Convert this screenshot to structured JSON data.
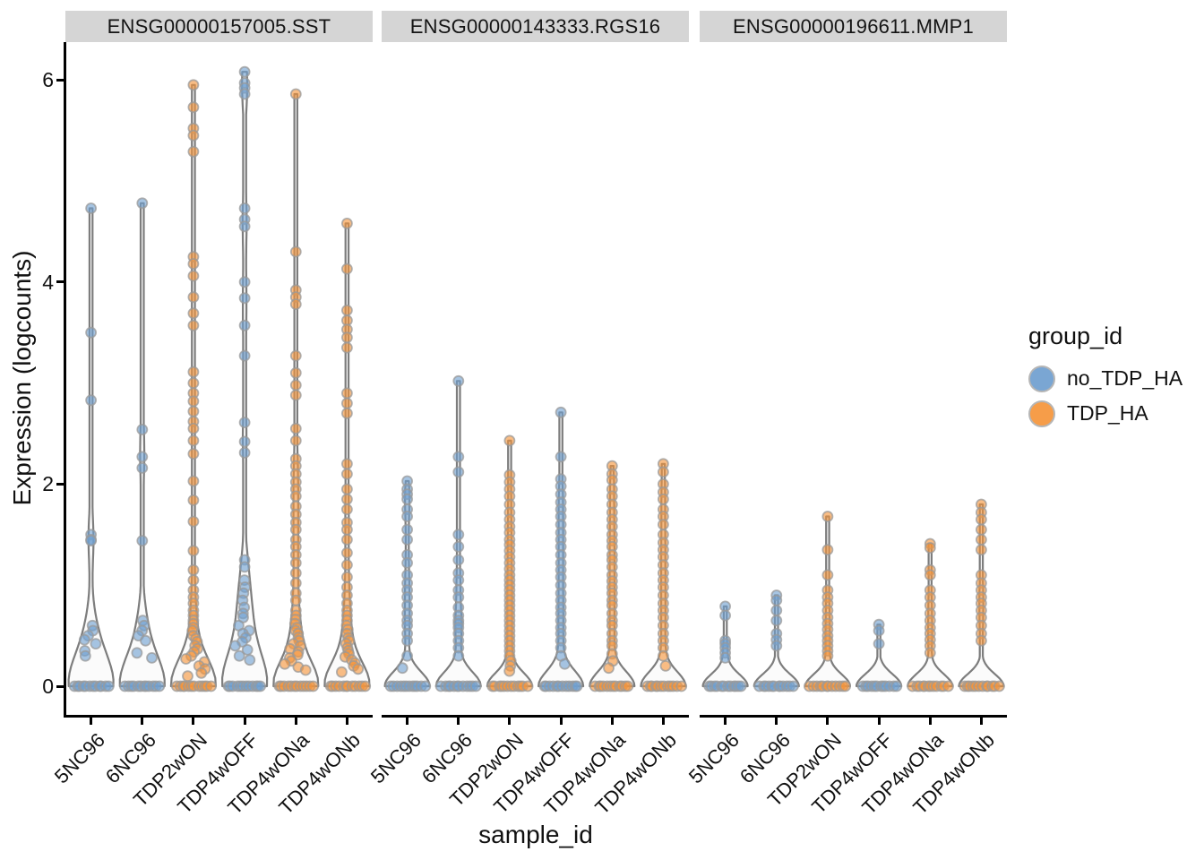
{
  "legend": {
    "title": "group_id",
    "items": [
      {
        "label": "no_TDP_HA",
        "color": "#6f9fd0"
      },
      {
        "label": "TDP_HA",
        "color": "#f6953a"
      }
    ]
  },
  "colors": {
    "violin_fill": "#fafafa",
    "violin_stroke": "#7d7d7d",
    "point_stroke": "#999999",
    "strip_background": "#d5d5d5",
    "axis": "#000000"
  },
  "chart_data": {
    "type": "violin",
    "x_axis": {
      "title": "sample_id"
    },
    "y_axis": {
      "title": "Expression (logcounts)",
      "ticks": [
        0,
        2,
        4,
        6
      ],
      "range": [
        -0.28,
        6.38
      ]
    },
    "x_categories": [
      "5NC96",
      "6NC96",
      "TDP2wON",
      "TDP4wOFF",
      "TDP4wONa",
      "TDP4wONb"
    ],
    "sample_groups": {
      "5NC96": "no_TDP_HA",
      "6NC96": "no_TDP_HA",
      "TDP2wON": "TDP_HA",
      "TDP4wOFF": "no_TDP_HA",
      "TDP4wONa": "TDP_HA",
      "TDP4wONb": "TDP_HA"
    },
    "legend_position": "right",
    "grid": false,
    "facets": [
      {
        "gene": "ENSG00000157005.SST",
        "violins": [
          {
            "sample": "5NC96",
            "group": "no_TDP_HA",
            "zero_count": 25,
            "values": [
              4.73,
              3.5,
              2.83,
              1.5,
              1.45,
              1.44,
              0.6,
              0.55,
              0.5,
              0.46,
              0.42,
              0.35,
              0.3
            ]
          },
          {
            "sample": "6NC96",
            "group": "no_TDP_HA",
            "zero_count": 25,
            "values": [
              4.78,
              2.54,
              2.27,
              2.16,
              1.44,
              0.65,
              0.6,
              0.55,
              0.5,
              0.45,
              0.33,
              0.28
            ]
          },
          {
            "sample": "TDP2wON",
            "group": "TDP_HA",
            "zero_count": 90,
            "values": [
              5.95,
              5.73,
              5.52,
              5.45,
              5.29,
              4.25,
              4.18,
              4.06,
              3.85,
              3.69,
              3.57,
              3.11,
              3.0,
              2.9,
              2.82,
              2.72,
              2.62,
              2.55,
              2.43,
              2.3,
              2.03,
              1.84,
              1.63,
              1.34,
              1.15,
              1.05,
              0.95,
              0.88,
              0.82,
              0.75,
              0.7,
              0.65,
              0.62,
              0.58,
              0.55,
              0.5,
              0.47,
              0.44,
              0.4,
              0.37,
              0.34,
              0.3,
              0.27,
              0.24,
              0.2,
              0.17,
              0.13,
              0.1
            ]
          },
          {
            "sample": "TDP4wOFF",
            "group": "no_TDP_HA",
            "zero_count": 30,
            "values": [
              6.08,
              5.97,
              5.92,
              5.86,
              4.73,
              4.62,
              4.55,
              4.0,
              3.84,
              3.57,
              3.27,
              2.61,
              2.42,
              2.31,
              1.25,
              1.18,
              1.05,
              0.98,
              0.92,
              0.85,
              0.78,
              0.72,
              0.68,
              0.6,
              0.55,
              0.52,
              0.48,
              0.44,
              0.4,
              0.36,
              0.3,
              0.26
            ]
          },
          {
            "sample": "TDP4wONa",
            "group": "TDP_HA",
            "zero_count": 60,
            "values": [
              5.86,
              4.3,
              3.92,
              3.85,
              3.78,
              3.27,
              3.1,
              2.98,
              2.88,
              2.55,
              2.43,
              2.25,
              2.18,
              2.1,
              2.02,
              1.95,
              1.88,
              1.78,
              1.7,
              1.62,
              1.55,
              1.45,
              1.38,
              1.3,
              1.22,
              1.12,
              1.02,
              0.92,
              0.85,
              0.75,
              0.7,
              0.66,
              0.62,
              0.58,
              0.55,
              0.52,
              0.48,
              0.45,
              0.42,
              0.4,
              0.37,
              0.34,
              0.31,
              0.28,
              0.25,
              0.22,
              0.19,
              0.16
            ]
          },
          {
            "sample": "TDP4wONb",
            "group": "TDP_HA",
            "zero_count": 60,
            "values": [
              4.58,
              4.13,
              3.72,
              3.62,
              3.53,
              3.45,
              3.35,
              2.9,
              2.8,
              2.7,
              2.2,
              2.1,
              1.95,
              1.85,
              1.75,
              1.62,
              1.55,
              1.45,
              1.32,
              1.2,
              1.08,
              0.98,
              0.9,
              0.82,
              0.75,
              0.7,
              0.65,
              0.6,
              0.56,
              0.52,
              0.48,
              0.45,
              0.42,
              0.38,
              0.35,
              0.32,
              0.29,
              0.26,
              0.23,
              0.2,
              0.17,
              0.14
            ]
          }
        ]
      },
      {
        "gene": "ENSG00000143333.RGS16",
        "violins": [
          {
            "sample": "5NC96",
            "group": "no_TDP_HA",
            "zero_count": 45,
            "values": [
              2.03,
              1.95,
              1.9,
              1.85,
              1.75,
              1.68,
              1.55,
              1.45,
              1.3,
              1.22,
              1.1,
              1.02,
              0.95,
              0.88,
              0.8,
              0.72,
              0.65,
              0.6,
              0.52,
              0.45,
              0.3,
              0.18
            ]
          },
          {
            "sample": "6NC96",
            "group": "no_TDP_HA",
            "zero_count": 45,
            "values": [
              3.02,
              2.27,
              2.12,
              1.5,
              1.38,
              1.25,
              1.12,
              1.05,
              0.95,
              0.88,
              0.78,
              0.7,
              0.65,
              0.62,
              0.58,
              0.52,
              0.45,
              0.38,
              0.3
            ]
          },
          {
            "sample": "TDP2wON",
            "group": "TDP_HA",
            "zero_count": 60,
            "values": [
              2.43,
              2.09,
              2.02,
              1.95,
              1.88,
              1.8,
              1.72,
              1.65,
              1.58,
              1.52,
              1.45,
              1.4,
              1.34,
              1.28,
              1.22,
              1.16,
              1.1,
              1.05,
              1.0,
              0.95,
              0.9,
              0.85,
              0.8,
              0.75,
              0.7,
              0.65,
              0.6,
              0.55,
              0.5,
              0.45,
              0.4,
              0.35,
              0.3,
              0.25,
              0.2,
              0.15
            ]
          },
          {
            "sample": "TDP4wOFF",
            "group": "no_TDP_HA",
            "zero_count": 50,
            "values": [
              2.71,
              2.27,
              2.05,
              1.98,
              1.9,
              1.82,
              1.75,
              1.68,
              1.6,
              1.52,
              1.45,
              1.38,
              1.3,
              1.22,
              1.15,
              1.08,
              1.0,
              0.92,
              0.85,
              0.78,
              0.72,
              0.65,
              0.58,
              0.52,
              0.45,
              0.38,
              0.3,
              0.22
            ]
          },
          {
            "sample": "TDP4wONa",
            "group": "TDP_HA",
            "zero_count": 50,
            "values": [
              2.18,
              2.1,
              2.04,
              1.95,
              1.88,
              1.8,
              1.72,
              1.65,
              1.58,
              1.5,
              1.44,
              1.38,
              1.3,
              1.25,
              1.18,
              1.1,
              1.04,
              0.98,
              0.92,
              0.85,
              0.8,
              0.72,
              0.65,
              0.6,
              0.52,
              0.45,
              0.4,
              0.32,
              0.25,
              0.18
            ]
          },
          {
            "sample": "TDP4wONb",
            "group": "TDP_HA",
            "zero_count": 50,
            "values": [
              2.2,
              2.12,
              2.0,
              1.92,
              1.85,
              1.75,
              1.68,
              1.6,
              1.5,
              1.42,
              1.35,
              1.28,
              1.2,
              1.12,
              1.05,
              0.98,
              0.9,
              0.82,
              0.75,
              0.68,
              0.6,
              0.52,
              0.45,
              0.38,
              0.3,
              0.2
            ]
          }
        ]
      },
      {
        "gene": "ENSG00000196611.MMP1",
        "violins": [
          {
            "sample": "5NC96",
            "group": "no_TDP_HA",
            "zero_count": 50,
            "values": [
              0.79,
              0.7,
              0.45,
              0.42,
              0.38,
              0.33,
              0.28
            ]
          },
          {
            "sample": "6NC96",
            "group": "no_TDP_HA",
            "zero_count": 50,
            "values": [
              0.9,
              0.85,
              0.75,
              0.65,
              0.52,
              0.46,
              0.4
            ]
          },
          {
            "sample": "TDP2wON",
            "group": "TDP_HA",
            "zero_count": 55,
            "values": [
              1.68,
              1.35,
              1.1,
              0.95,
              0.88,
              0.82,
              0.75,
              0.68,
              0.62,
              0.56,
              0.5,
              0.45,
              0.4,
              0.35,
              0.3
            ]
          },
          {
            "sample": "TDP4wOFF",
            "group": "no_TDP_HA",
            "zero_count": 50,
            "values": [
              0.61,
              0.55,
              0.42
            ]
          },
          {
            "sample": "TDP4wONa",
            "group": "TDP_HA",
            "zero_count": 50,
            "values": [
              1.41,
              1.37,
              1.15,
              1.1,
              0.95,
              0.88,
              0.8,
              0.72,
              0.65,
              0.58,
              0.52,
              0.46,
              0.4,
              0.33
            ]
          },
          {
            "sample": "TDP4wONb",
            "group": "TDP_HA",
            "zero_count": 50,
            "values": [
              1.8,
              1.72,
              1.65,
              1.55,
              1.45,
              1.35,
              1.1,
              1.02,
              0.95,
              0.88,
              0.82,
              0.75,
              0.68,
              0.6,
              0.52,
              0.45
            ]
          }
        ]
      }
    ]
  }
}
